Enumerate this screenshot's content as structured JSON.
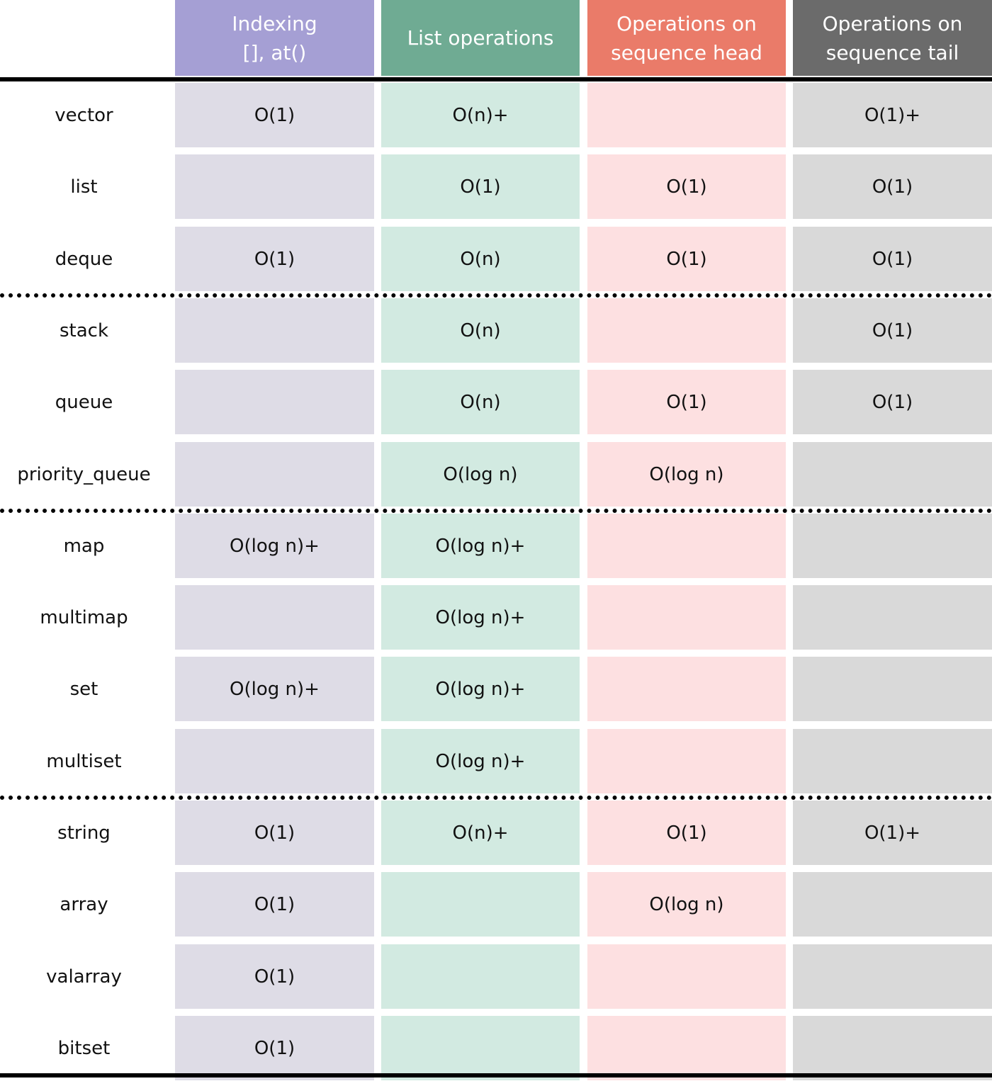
{
  "colors": {
    "indexing_header": "#a59fd4",
    "list_header": "#6fab93",
    "head_header": "#ea7b69",
    "tail_header": "#6b6b6b",
    "indexing_cell": "#dedce6",
    "list_cell": "#d2eae1",
    "head_cell": "#fde0e1",
    "tail_cell": "#d9d9d9"
  },
  "columns": [
    {
      "key": "indexing",
      "lines": [
        "Indexing",
        "[], at()"
      ]
    },
    {
      "key": "list",
      "lines": [
        "List operations"
      ]
    },
    {
      "key": "head",
      "lines": [
        "Operations on",
        "sequence head"
      ]
    },
    {
      "key": "tail",
      "lines": [
        "Operations on",
        "sequence tail"
      ]
    }
  ],
  "groups": [
    {
      "rows": [
        {
          "name": "vector",
          "values": [
            "O(1)",
            "O(n)+",
            "",
            "O(1)+"
          ]
        },
        {
          "name": "list",
          "values": [
            "",
            "O(1)",
            "O(1)",
            "O(1)"
          ]
        },
        {
          "name": "deque",
          "values": [
            "O(1)",
            "O(n)",
            "O(1)",
            "O(1)"
          ]
        }
      ]
    },
    {
      "rows": [
        {
          "name": "stack",
          "values": [
            "",
            "O(n)",
            "",
            "O(1)"
          ]
        },
        {
          "name": "queue",
          "values": [
            "",
            "O(n)",
            "O(1)",
            "O(1)"
          ]
        },
        {
          "name": "priority_queue",
          "values": [
            "",
            "O(log n)",
            "O(log n)",
            ""
          ]
        }
      ]
    },
    {
      "rows": [
        {
          "name": "map",
          "values": [
            "O(log n)+",
            "O(log n)+",
            "",
            ""
          ]
        },
        {
          "name": "multimap",
          "values": [
            "",
            "O(log n)+",
            "",
            ""
          ]
        },
        {
          "name": "set",
          "values": [
            "O(log n)+",
            "O(log n)+",
            "",
            ""
          ]
        },
        {
          "name": "multiset",
          "values": [
            "",
            "O(log n)+",
            "",
            ""
          ]
        }
      ]
    },
    {
      "rows": [
        {
          "name": "string",
          "values": [
            "O(1)",
            "O(n)+",
            "O(1)",
            "O(1)+"
          ]
        },
        {
          "name": "array",
          "values": [
            "O(1)",
            "",
            "O(log n)",
            ""
          ]
        },
        {
          "name": "valarray",
          "values": [
            "O(1)",
            "",
            "",
            ""
          ]
        },
        {
          "name": "bitset",
          "values": [
            "O(1)",
            "",
            "",
            ""
          ]
        }
      ]
    }
  ]
}
